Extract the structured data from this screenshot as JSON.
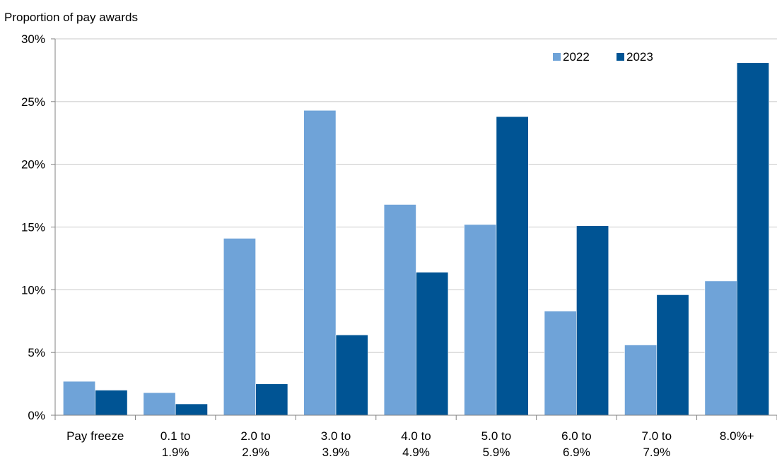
{
  "chart_data": {
    "type": "bar",
    "title": "",
    "ylabel": "Proportion of pay awards",
    "xlabel": "",
    "categories": [
      [
        "Pay freeze"
      ],
      [
        "0.1 to",
        "1.9%"
      ],
      [
        "2.0 to",
        "2.9%"
      ],
      [
        "3.0 to",
        "3.9%"
      ],
      [
        "4.0 to",
        "4.9%"
      ],
      [
        "5.0 to",
        "5.9%"
      ],
      [
        "6.0 to",
        "6.9%"
      ],
      [
        "7.0 to",
        "7.9%"
      ],
      [
        "8.0%+"
      ]
    ],
    "series": [
      {
        "name": "2022",
        "color": "#6fa3d8",
        "values": [
          2.7,
          1.8,
          14.1,
          24.3,
          16.8,
          15.2,
          8.3,
          5.6,
          10.7
        ]
      },
      {
        "name": "2023",
        "color": "#005494",
        "values": [
          2.0,
          0.9,
          2.5,
          6.4,
          11.4,
          23.8,
          15.1,
          9.6,
          28.1
        ]
      }
    ],
    "ylim": [
      0,
      30
    ],
    "yticks": [
      0,
      5,
      10,
      15,
      20,
      25,
      30
    ],
    "ytick_labels": [
      "0%",
      "5%",
      "10%",
      "15%",
      "20%",
      "25%",
      "30%"
    ],
    "grid": true,
    "legend_position": "top-right"
  }
}
